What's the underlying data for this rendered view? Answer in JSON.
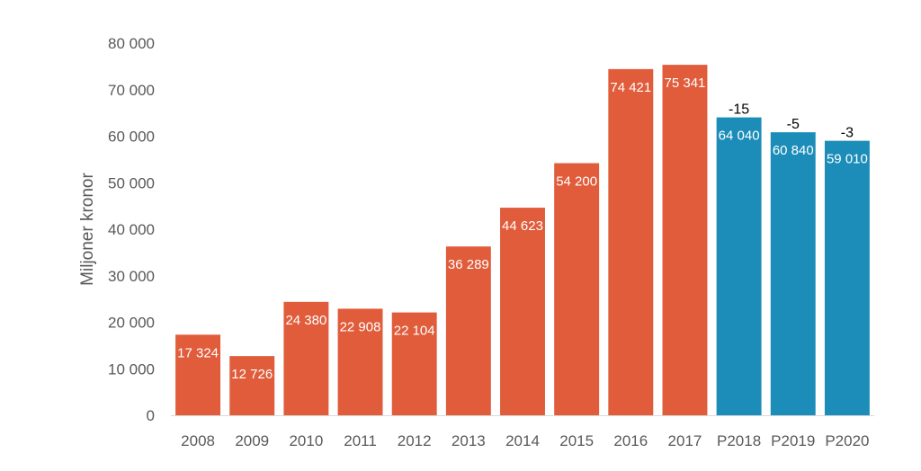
{
  "chart_data": {
    "type": "bar",
    "title": "",
    "xlabel": "",
    "ylabel": "Miljoner kronor",
    "ylim": [
      0,
      80000
    ],
    "yticks": [
      0,
      10000,
      20000,
      30000,
      40000,
      50000,
      60000,
      70000,
      80000
    ],
    "ytick_labels": [
      "0",
      "10 000",
      "20 000",
      "30 000",
      "40 000",
      "50 000",
      "60 000",
      "70 000",
      "80 000"
    ],
    "categories": [
      "2008",
      "2009",
      "2010",
      "2011",
      "2012",
      "2013",
      "2014",
      "2015",
      "2016",
      "2017",
      "P2018",
      "P2019",
      "P2020"
    ],
    "values": [
      17324,
      12726,
      24380,
      22908,
      22104,
      36289,
      44623,
      54200,
      74421,
      75341,
      64040,
      60840,
      59010
    ],
    "value_labels": [
      "17 324",
      "12 726",
      "24 380",
      "22 908",
      "22 104",
      "36 289",
      "44 623",
      "54 200",
      "74 421",
      "75 341",
      "64 040",
      "60 840",
      "59 010"
    ],
    "bar_colors": [
      "#E05C3B",
      "#E05C3B",
      "#E05C3B",
      "#E05C3B",
      "#E05C3B",
      "#E05C3B",
      "#E05C3B",
      "#E05C3B",
      "#E05C3B",
      "#E05C3B",
      "#1C8DB8",
      "#1C8DB8",
      "#1C8DB8"
    ],
    "annotations": [
      {
        "category": "P2018",
        "text": "-15"
      },
      {
        "category": "P2019",
        "text": "-5"
      },
      {
        "category": "P2020",
        "text": "-3"
      }
    ],
    "grid": false,
    "legend": "none"
  }
}
